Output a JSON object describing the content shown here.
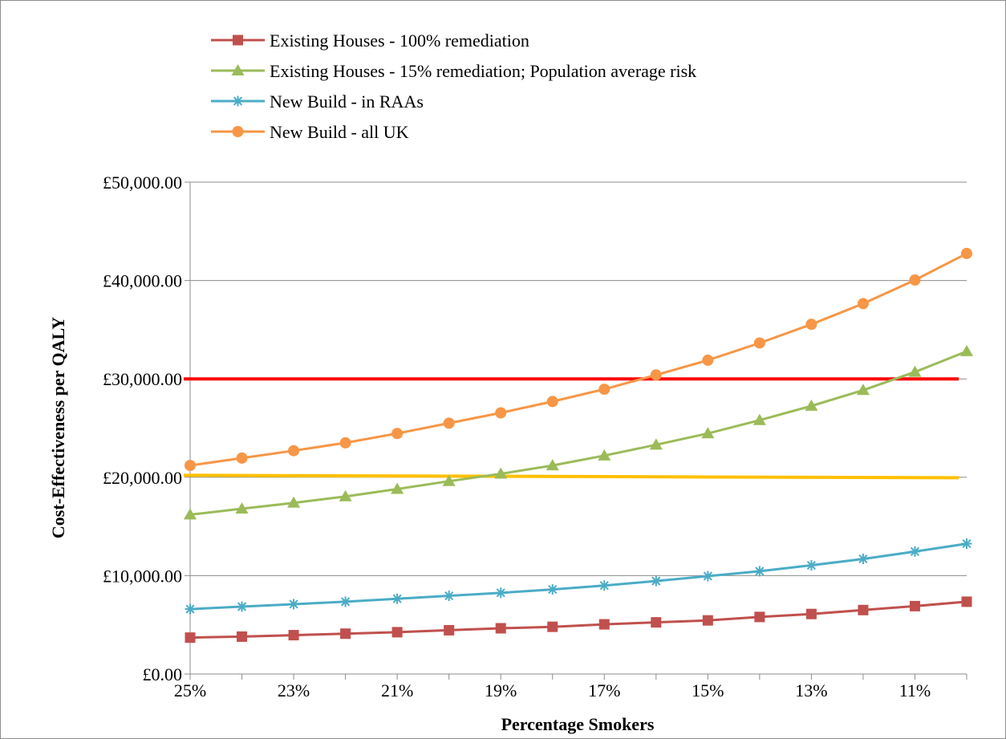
{
  "chart_data": {
    "type": "line",
    "xlabel": "Percentage Smokers",
    "ylabel": "Cost-Effectiveness per QALY",
    "ylim": [
      0,
      50000
    ],
    "x": [
      25,
      24,
      23,
      22,
      21,
      20,
      19,
      18,
      17,
      16,
      15,
      14,
      13,
      12,
      11,
      10
    ],
    "x_tick_labels": [
      "25%",
      "23%",
      "21%",
      "19%",
      "17%",
      "15%",
      "13%",
      "11%"
    ],
    "y_tick_labels": [
      "£0.00",
      "£10,000.00",
      "£20,000.00",
      "£30,000.00",
      "£40,000.00",
      "£50,000.00"
    ],
    "y_ticks": [
      0,
      10000,
      20000,
      30000,
      40000,
      50000
    ],
    "grid": "horizontal",
    "legend": "top-left",
    "series": [
      {
        "name": "Existing Houses - 100% remediation",
        "color": "#c0504d",
        "marker": "square",
        "values": [
          3700,
          3800,
          3950,
          4100,
          4250,
          4450,
          4650,
          4800,
          5050,
          5250,
          5450,
          5800,
          6100,
          6500,
          6900,
          7350
        ]
      },
      {
        "name": "Existing Houses - 15% remediation; Population average risk",
        "color": "#9bbb59",
        "marker": "triangle",
        "values": [
          16200,
          16800,
          17400,
          18050,
          18800,
          19600,
          20350,
          21200,
          22200,
          23300,
          24450,
          25800,
          27250,
          28850,
          30700,
          32800
        ]
      },
      {
        "name": "New Build - in RAAs",
        "color": "#4bacc6",
        "marker": "asterisk",
        "values": [
          6600,
          6850,
          7100,
          7350,
          7650,
          7950,
          8250,
          8600,
          9000,
          9450,
          9950,
          10450,
          11050,
          11700,
          12450,
          13250
        ]
      },
      {
        "name": "New Build - all UK",
        "color": "#f79646",
        "marker": "circle",
        "values": [
          21200,
          21950,
          22700,
          23500,
          24450,
          25500,
          26550,
          27700,
          28950,
          30400,
          31900,
          33650,
          35550,
          37650,
          40050,
          42750
        ]
      }
    ],
    "reference_lines": [
      {
        "color": "#ff0000",
        "y_start": 30000,
        "y_end": 30000
      },
      {
        "color": "#ffc000",
        "y_start": 20200,
        "y_end": 19950
      }
    ]
  }
}
